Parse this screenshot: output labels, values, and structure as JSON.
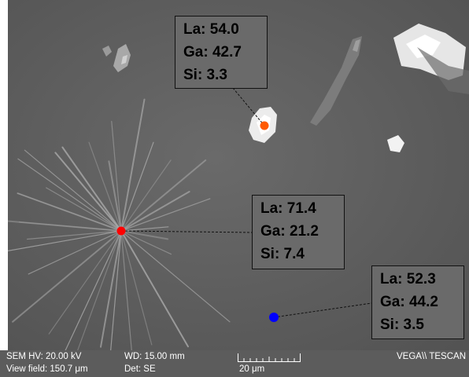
{
  "annotations": [
    {
      "lines": [
        "La: 54.0",
        "Ga: 42.7",
        "Si: 3.3"
      ],
      "marker_color": "#ff5a00"
    },
    {
      "lines": [
        "La: 71.4",
        "Ga: 21.2",
        "Si: 7.4"
      ],
      "marker_color": "#ff0000"
    },
    {
      "lines": [
        "La: 52.3",
        "Ga: 44.2",
        "Si: 3.5"
      ],
      "marker_color": "#0000ff"
    }
  ],
  "infobar": {
    "sem_hv": "SEM HV: 20.00 kV",
    "view_field": "View field: 150.7 μm",
    "wd": "WD: 15.00 mm",
    "det": "Det: SE",
    "scale_label": "20 μm",
    "brand": "VEGA\\\\ TESCAN"
  },
  "colors": {
    "background": "#5e5e5e",
    "infobar": "#5c5c5c",
    "label_box": "#6a6a6a"
  }
}
